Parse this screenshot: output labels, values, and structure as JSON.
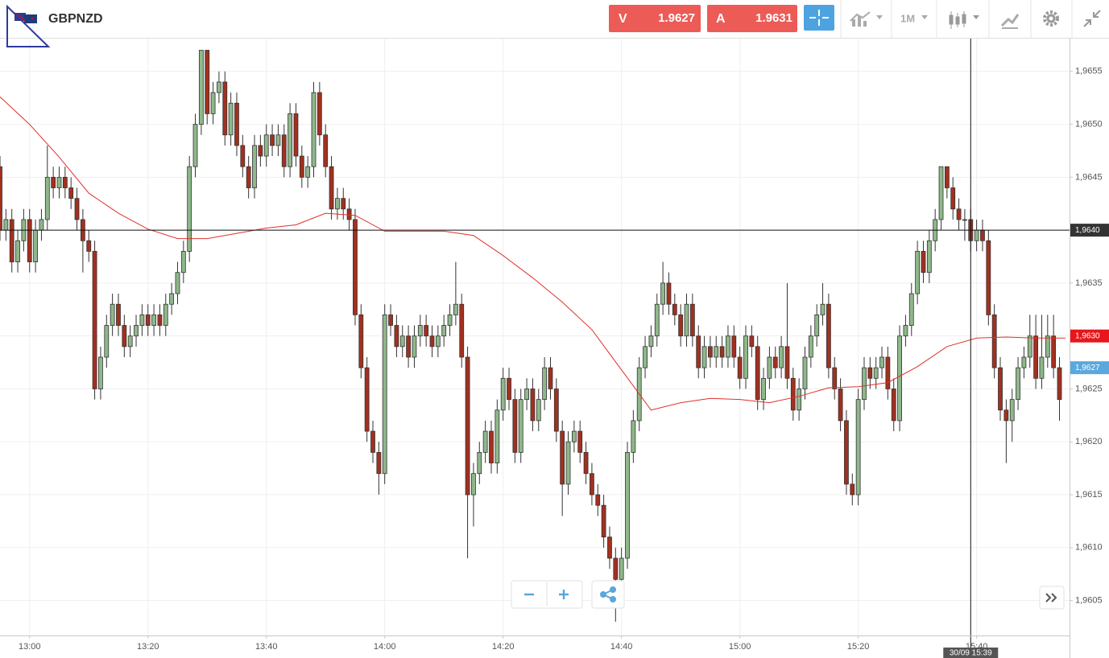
{
  "header": {
    "symbol": "GBPNZD",
    "sell": {
      "label": "V",
      "price": "1.9627"
    },
    "buy": {
      "label": "A",
      "price": "1.9631"
    },
    "timeframe": "1M"
  },
  "chart_data": {
    "type": "candlestick",
    "up_color": "#8fb88a",
    "down_color": "#a3301f",
    "grid": true,
    "xlim": [
      775,
      955.7
    ],
    "ylim": [
      1.96017,
      1.96581
    ],
    "xticks": [
      {
        "value": 780,
        "label": "13:00"
      },
      {
        "value": 800,
        "label": "13:20"
      },
      {
        "value": 820,
        "label": "13:40"
      },
      {
        "value": 840,
        "label": "14:00"
      },
      {
        "value": 860,
        "label": "14:20"
      },
      {
        "value": 880,
        "label": "14:40"
      },
      {
        "value": 900,
        "label": "15:00"
      },
      {
        "value": 920,
        "label": "15:20"
      },
      {
        "value": 940,
        "label": "15:40"
      }
    ],
    "yticks": [
      {
        "value": 1.9605,
        "label": "1,9605"
      },
      {
        "value": 1.961,
        "label": "1,9610"
      },
      {
        "value": 1.9615,
        "label": "1,9615"
      },
      {
        "value": 1.962,
        "label": "1,9620"
      },
      {
        "value": 1.9625,
        "label": "1,9625"
      },
      {
        "value": 1.963,
        "label": "1,9630"
      },
      {
        "value": 1.9635,
        "label": "1,9635"
      },
      {
        "value": 1.964,
        "label": "1,9640"
      },
      {
        "value": 1.9645,
        "label": "1,9645"
      },
      {
        "value": 1.965,
        "label": "1,9650"
      },
      {
        "value": 1.9655,
        "label": "1,9655"
      }
    ],
    "x": [
      775,
      776,
      777,
      778,
      779,
      780,
      781,
      782,
      783,
      784,
      785,
      786,
      787,
      788,
      789,
      790,
      791,
      792,
      793,
      794,
      795,
      796,
      797,
      798,
      799,
      800,
      801,
      802,
      803,
      804,
      805,
      806,
      807,
      808,
      809,
      810,
      811,
      812,
      813,
      814,
      815,
      816,
      817,
      818,
      819,
      820,
      821,
      822,
      823,
      824,
      825,
      826,
      827,
      828,
      829,
      830,
      831,
      832,
      833,
      834,
      835,
      836,
      837,
      838,
      839,
      840,
      841,
      842,
      843,
      844,
      845,
      846,
      847,
      848,
      849,
      850,
      851,
      852,
      853,
      854,
      855,
      856,
      857,
      858,
      859,
      860,
      861,
      862,
      863,
      864,
      865,
      866,
      867,
      868,
      869,
      870,
      871,
      872,
      873,
      874,
      875,
      876,
      877,
      878,
      879,
      880,
      881,
      882,
      883,
      884,
      885,
      886,
      887,
      888,
      889,
      890,
      891,
      892,
      893,
      894,
      895,
      896,
      897,
      898,
      899,
      900,
      901,
      902,
      903,
      904,
      905,
      906,
      907,
      908,
      909,
      910,
      911,
      912,
      913,
      914,
      915,
      916,
      917,
      918,
      919,
      920,
      921,
      922,
      923,
      924,
      925,
      926,
      927,
      928,
      929,
      930,
      931,
      932,
      933,
      934,
      935,
      936,
      937,
      938,
      939,
      940,
      941,
      942,
      943,
      944,
      945,
      946,
      947,
      948,
      949,
      950,
      951,
      952,
      953,
      954
    ],
    "candles": [
      [
        1.9646,
        1.9647,
        1.9639,
        1.964
      ],
      [
        1.964,
        1.9642,
        1.9639,
        1.9641
      ],
      [
        1.9641,
        1.9642,
        1.9636,
        1.9637
      ],
      [
        1.9637,
        1.964,
        1.9636,
        1.9639
      ],
      [
        1.9639,
        1.9642,
        1.9638,
        1.9641
      ],
      [
        1.9641,
        1.9642,
        1.9636,
        1.9637
      ],
      [
        1.9637,
        1.9641,
        1.9636,
        1.964
      ],
      [
        1.964,
        1.9642,
        1.9639,
        1.9641
      ],
      [
        1.9641,
        1.9648,
        1.964,
        1.9645
      ],
      [
        1.9645,
        1.9646,
        1.9643,
        1.9644
      ],
      [
        1.9644,
        1.9646,
        1.9643,
        1.9645
      ],
      [
        1.9645,
        1.9646,
        1.9643,
        1.9644
      ],
      [
        1.9644,
        1.9645,
        1.9642,
        1.9643
      ],
      [
        1.9643,
        1.9644,
        1.964,
        1.9641
      ],
      [
        1.9641,
        1.9642,
        1.9636,
        1.9639
      ],
      [
        1.9639,
        1.964,
        1.9637,
        1.9638
      ],
      [
        1.9638,
        1.9639,
        1.9624,
        1.9625
      ],
      [
        1.9625,
        1.9629,
        1.9624,
        1.9628
      ],
      [
        1.9628,
        1.9632,
        1.9627,
        1.9631
      ],
      [
        1.9631,
        1.9634,
        1.963,
        1.9633
      ],
      [
        1.9633,
        1.9634,
        1.963,
        1.9631
      ],
      [
        1.9631,
        1.9632,
        1.9628,
        1.9629
      ],
      [
        1.9629,
        1.9631,
        1.9628,
        1.963
      ],
      [
        1.963,
        1.9632,
        1.9629,
        1.9631
      ],
      [
        1.9631,
        1.9633,
        1.963,
        1.9632
      ],
      [
        1.9632,
        1.9633,
        1.963,
        1.9631
      ],
      [
        1.9631,
        1.9633,
        1.963,
        1.9632
      ],
      [
        1.9632,
        1.9633,
        1.963,
        1.9631
      ],
      [
        1.9631,
        1.9634,
        1.963,
        1.9633
      ],
      [
        1.9633,
        1.9635,
        1.9632,
        1.9634
      ],
      [
        1.9634,
        1.9637,
        1.9633,
        1.9636
      ],
      [
        1.9636,
        1.9639,
        1.9635,
        1.9638
      ],
      [
        1.9638,
        1.9647,
        1.9637,
        1.9646
      ],
      [
        1.9646,
        1.9651,
        1.9645,
        1.965
      ],
      [
        1.965,
        1.9657,
        1.9649,
        1.9657
      ],
      [
        1.9657,
        1.9657,
        1.965,
        1.9651
      ],
      [
        1.9651,
        1.9654,
        1.965,
        1.9653
      ],
      [
        1.9653,
        1.9655,
        1.9652,
        1.9654
      ],
      [
        1.9654,
        1.9655,
        1.9648,
        1.9649
      ],
      [
        1.9649,
        1.9653,
        1.9648,
        1.9652
      ],
      [
        1.9652,
        1.9653,
        1.9647,
        1.9648
      ],
      [
        1.9648,
        1.9649,
        1.9645,
        1.9646
      ],
      [
        1.9646,
        1.9647,
        1.9643,
        1.9644
      ],
      [
        1.9644,
        1.9649,
        1.9643,
        1.9648
      ],
      [
        1.9648,
        1.9649,
        1.9646,
        1.9647
      ],
      [
        1.9647,
        1.965,
        1.9646,
        1.9649
      ],
      [
        1.9649,
        1.965,
        1.9647,
        1.9648
      ],
      [
        1.9648,
        1.965,
        1.9647,
        1.9649
      ],
      [
        1.9649,
        1.965,
        1.9645,
        1.9646
      ],
      [
        1.9646,
        1.9652,
        1.9645,
        1.9651
      ],
      [
        1.9651,
        1.9652,
        1.9646,
        1.9647
      ],
      [
        1.9647,
        1.9648,
        1.9644,
        1.9645
      ],
      [
        1.9645,
        1.9647,
        1.9644,
        1.9646
      ],
      [
        1.9646,
        1.9654,
        1.9645,
        1.9653
      ],
      [
        1.9653,
        1.9654,
        1.9648,
        1.9649
      ],
      [
        1.9649,
        1.965,
        1.9645,
        1.9646
      ],
      [
        1.9646,
        1.9647,
        1.9641,
        1.9642
      ],
      [
        1.9642,
        1.9644,
        1.9641,
        1.9643
      ],
      [
        1.9643,
        1.9644,
        1.9641,
        1.9642
      ],
      [
        1.9642,
        1.9643,
        1.964,
        1.9641
      ],
      [
        1.9641,
        1.9642,
        1.9631,
        1.9632
      ],
      [
        1.9632,
        1.9633,
        1.9626,
        1.9627
      ],
      [
        1.9627,
        1.9628,
        1.962,
        1.9621
      ],
      [
        1.9621,
        1.9622,
        1.9618,
        1.9619
      ],
      [
        1.9619,
        1.962,
        1.9615,
        1.9617
      ],
      [
        1.9617,
        1.9633,
        1.9616,
        1.9632
      ],
      [
        1.9632,
        1.9633,
        1.963,
        1.9631
      ],
      [
        1.9631,
        1.9632,
        1.9628,
        1.9629
      ],
      [
        1.9629,
        1.9631,
        1.9628,
        1.963
      ],
      [
        1.963,
        1.9631,
        1.9627,
        1.9628
      ],
      [
        1.9628,
        1.9631,
        1.9627,
        1.963
      ],
      [
        1.963,
        1.9632,
        1.9629,
        1.9631
      ],
      [
        1.9631,
        1.9632,
        1.9629,
        1.963
      ],
      [
        1.963,
        1.9631,
        1.9628,
        1.9629
      ],
      [
        1.9629,
        1.9631,
        1.9628,
        1.963
      ],
      [
        1.963,
        1.9632,
        1.9629,
        1.9631
      ],
      [
        1.9631,
        1.9633,
        1.963,
        1.9632
      ],
      [
        1.9632,
        1.9637,
        1.9631,
        1.9633
      ],
      [
        1.9633,
        1.9634,
        1.9627,
        1.9628
      ],
      [
        1.9628,
        1.9629,
        1.9609,
        1.9615
      ],
      [
        1.9615,
        1.9618,
        1.9612,
        1.9617
      ],
      [
        1.9617,
        1.962,
        1.9616,
        1.9619
      ],
      [
        1.9619,
        1.9622,
        1.9618,
        1.9621
      ],
      [
        1.9621,
        1.9622,
        1.9617,
        1.9618
      ],
      [
        1.9618,
        1.9624,
        1.9617,
        1.9623
      ],
      [
        1.9623,
        1.9627,
        1.9622,
        1.9626
      ],
      [
        1.9626,
        1.9627,
        1.9623,
        1.9624
      ],
      [
        1.9624,
        1.9625,
        1.9618,
        1.9619
      ],
      [
        1.9619,
        1.9625,
        1.9618,
        1.9624
      ],
      [
        1.9624,
        1.9626,
        1.9623,
        1.9625
      ],
      [
        1.9625,
        1.9626,
        1.9621,
        1.9622
      ],
      [
        1.9622,
        1.9625,
        1.9621,
        1.9624
      ],
      [
        1.9624,
        1.9628,
        1.9623,
        1.9627
      ],
      [
        1.9627,
        1.9628,
        1.9624,
        1.9625
      ],
      [
        1.9625,
        1.9626,
        1.962,
        1.9621
      ],
      [
        1.9621,
        1.9622,
        1.9613,
        1.9616
      ],
      [
        1.9616,
        1.9621,
        1.9615,
        1.962
      ],
      [
        1.962,
        1.9622,
        1.9619,
        1.9621
      ],
      [
        1.9621,
        1.9622,
        1.9618,
        1.9619
      ],
      [
        1.9619,
        1.962,
        1.9616,
        1.9617
      ],
      [
        1.9617,
        1.9618,
        1.9614,
        1.9615
      ],
      [
        1.9615,
        1.9616,
        1.9613,
        1.9614
      ],
      [
        1.9614,
        1.9615,
        1.961,
        1.9611
      ],
      [
        1.9611,
        1.9612,
        1.9608,
        1.9609
      ],
      [
        1.9609,
        1.961,
        1.9603,
        1.9607
      ],
      [
        1.9607,
        1.961,
        1.9606,
        1.9609
      ],
      [
        1.9609,
        1.962,
        1.9608,
        1.9619
      ],
      [
        1.9619,
        1.9623,
        1.9618,
        1.9622
      ],
      [
        1.9622,
        1.9628,
        1.9621,
        1.9627
      ],
      [
        1.9627,
        1.963,
        1.9626,
        1.9629
      ],
      [
        1.9629,
        1.9631,
        1.9628,
        1.963
      ],
      [
        1.963,
        1.9634,
        1.9629,
        1.9633
      ],
      [
        1.9633,
        1.9637,
        1.9632,
        1.9635
      ],
      [
        1.9635,
        1.9636,
        1.9632,
        1.9633
      ],
      [
        1.9633,
        1.9634,
        1.9631,
        1.9632
      ],
      [
        1.9632,
        1.9633,
        1.9629,
        1.963
      ],
      [
        1.963,
        1.9634,
        1.9629,
        1.9633
      ],
      [
        1.9633,
        1.9634,
        1.9629,
        1.963
      ],
      [
        1.963,
        1.9631,
        1.9626,
        1.9627
      ],
      [
        1.9627,
        1.963,
        1.9626,
        1.9629
      ],
      [
        1.9629,
        1.963,
        1.9627,
        1.9628
      ],
      [
        1.9628,
        1.963,
        1.9627,
        1.9629
      ],
      [
        1.9629,
        1.963,
        1.9627,
        1.9628
      ],
      [
        1.9628,
        1.9631,
        1.9627,
        1.963
      ],
      [
        1.963,
        1.9631,
        1.9627,
        1.9628
      ],
      [
        1.9628,
        1.9629,
        1.9625,
        1.9626
      ],
      [
        1.9626,
        1.9631,
        1.9625,
        1.963
      ],
      [
        1.963,
        1.9631,
        1.9628,
        1.9629
      ],
      [
        1.9629,
        1.963,
        1.9623,
        1.9624
      ],
      [
        1.9624,
        1.9627,
        1.9623,
        1.9626
      ],
      [
        1.9626,
        1.9629,
        1.9625,
        1.9628
      ],
      [
        1.9628,
        1.9629,
        1.9626,
        1.9627
      ],
      [
        1.9627,
        1.963,
        1.9626,
        1.9629
      ],
      [
        1.9629,
        1.9635,
        1.9625,
        1.9626
      ],
      [
        1.9626,
        1.9627,
        1.9622,
        1.9623
      ],
      [
        1.9623,
        1.9626,
        1.9622,
        1.9625
      ],
      [
        1.9625,
        1.9629,
        1.9624,
        1.9628
      ],
      [
        1.9628,
        1.9631,
        1.9627,
        1.963
      ],
      [
        1.963,
        1.9633,
        1.9629,
        1.9632
      ],
      [
        1.9632,
        1.9635,
        1.9631,
        1.9633
      ],
      [
        1.9633,
        1.9634,
        1.9626,
        1.9627
      ],
      [
        1.9627,
        1.9628,
        1.9624,
        1.9625
      ],
      [
        1.9625,
        1.9626,
        1.9621,
        1.9622
      ],
      [
        1.9622,
        1.9623,
        1.9615,
        1.9616
      ],
      [
        1.9616,
        1.9617,
        1.9614,
        1.9615
      ],
      [
        1.9615,
        1.9625,
        1.9614,
        1.9624
      ],
      [
        1.9624,
        1.9628,
        1.9623,
        1.9627
      ],
      [
        1.9627,
        1.9628,
        1.9625,
        1.9626
      ],
      [
        1.9626,
        1.9628,
        1.9625,
        1.9627
      ],
      [
        1.9627,
        1.9629,
        1.9626,
        1.9628
      ],
      [
        1.9628,
        1.9629,
        1.9624,
        1.9625
      ],
      [
        1.9625,
        1.9626,
        1.9621,
        1.9622
      ],
      [
        1.9622,
        1.9631,
        1.9621,
        1.963
      ],
      [
        1.963,
        1.9632,
        1.9629,
        1.9631
      ],
      [
        1.9631,
        1.9635,
        1.963,
        1.9634
      ],
      [
        1.9634,
        1.9639,
        1.9633,
        1.9638
      ],
      [
        1.9638,
        1.9639,
        1.9635,
        1.9636
      ],
      [
        1.9636,
        1.964,
        1.9635,
        1.9639
      ],
      [
        1.9639,
        1.9642,
        1.9638,
        1.9641
      ],
      [
        1.9641,
        1.9646,
        1.964,
        1.9646
      ],
      [
        1.9646,
        1.9646,
        1.9643,
        1.9644
      ],
      [
        1.9644,
        1.9645,
        1.9641,
        1.9642
      ],
      [
        1.9642,
        1.9643,
        1.964,
        1.9641
      ],
      [
        1.9641,
        1.9642,
        1.9639,
        1.9641
      ],
      [
        1.9641,
        1.9642,
        1.9638,
        1.9639
      ],
      [
        1.9639,
        1.9641,
        1.9638,
        1.964
      ],
      [
        1.964,
        1.9641,
        1.9638,
        1.9639
      ],
      [
        1.9639,
        1.964,
        1.9631,
        1.9632
      ],
      [
        1.9632,
        1.9633,
        1.9626,
        1.9627
      ],
      [
        1.9627,
        1.9628,
        1.9622,
        1.9623
      ],
      [
        1.9623,
        1.9624,
        1.9618,
        1.9622
      ],
      [
        1.9622,
        1.9625,
        1.962,
        1.9624
      ],
      [
        1.9624,
        1.9628,
        1.9623,
        1.9627
      ],
      [
        1.9627,
        1.9629,
        1.9626,
        1.9628
      ],
      [
        1.9628,
        1.9632,
        1.9627,
        1.963
      ],
      [
        1.963,
        1.9632,
        1.9625,
        1.9626
      ],
      [
        1.9626,
        1.9632,
        1.9625,
        1.9628
      ],
      [
        1.9628,
        1.9632,
        1.9627,
        1.963
      ],
      [
        1.963,
        1.9632,
        1.9626,
        1.9627
      ],
      [
        1.9627,
        1.9628,
        1.9622,
        1.9624
      ]
    ],
    "ma": {
      "color": "#e0302a",
      "x": [
        775,
        780,
        785,
        790,
        795,
        800,
        805,
        810,
        815,
        820,
        825,
        830,
        835,
        840,
        845,
        850,
        855,
        860,
        865,
        870,
        875,
        880,
        885,
        890,
        895,
        900,
        905,
        910,
        915,
        920,
        925,
        930,
        935,
        940,
        945,
        950,
        955
      ],
      "values": [
        1.96526,
        1.965,
        1.96469,
        1.96435,
        1.96416,
        1.96401,
        1.96392,
        1.96392,
        1.96397,
        1.96402,
        1.96405,
        1.96416,
        1.96414,
        1.96399,
        1.96399,
        1.96399,
        1.96395,
        1.96376,
        1.96355,
        1.96332,
        1.96306,
        1.96268,
        1.9623,
        1.96237,
        1.96241,
        1.9624,
        1.96237,
        1.96243,
        1.96251,
        1.96252,
        1.96256,
        1.96271,
        1.9629,
        1.96298,
        1.96299,
        1.96298,
        1.96298
      ]
    },
    "crosshair": {
      "x": {
        "value": 939,
        "label": "30/09 15:39"
      },
      "y": {
        "value": 1.964,
        "label": "1,9640"
      }
    },
    "price_tags": [
      {
        "value": 1.963,
        "label": "1,9630",
        "color": "#e8161b"
      },
      {
        "value": 1.9627,
        "label": "1,9627",
        "color": "#5ba8dc"
      }
    ]
  }
}
